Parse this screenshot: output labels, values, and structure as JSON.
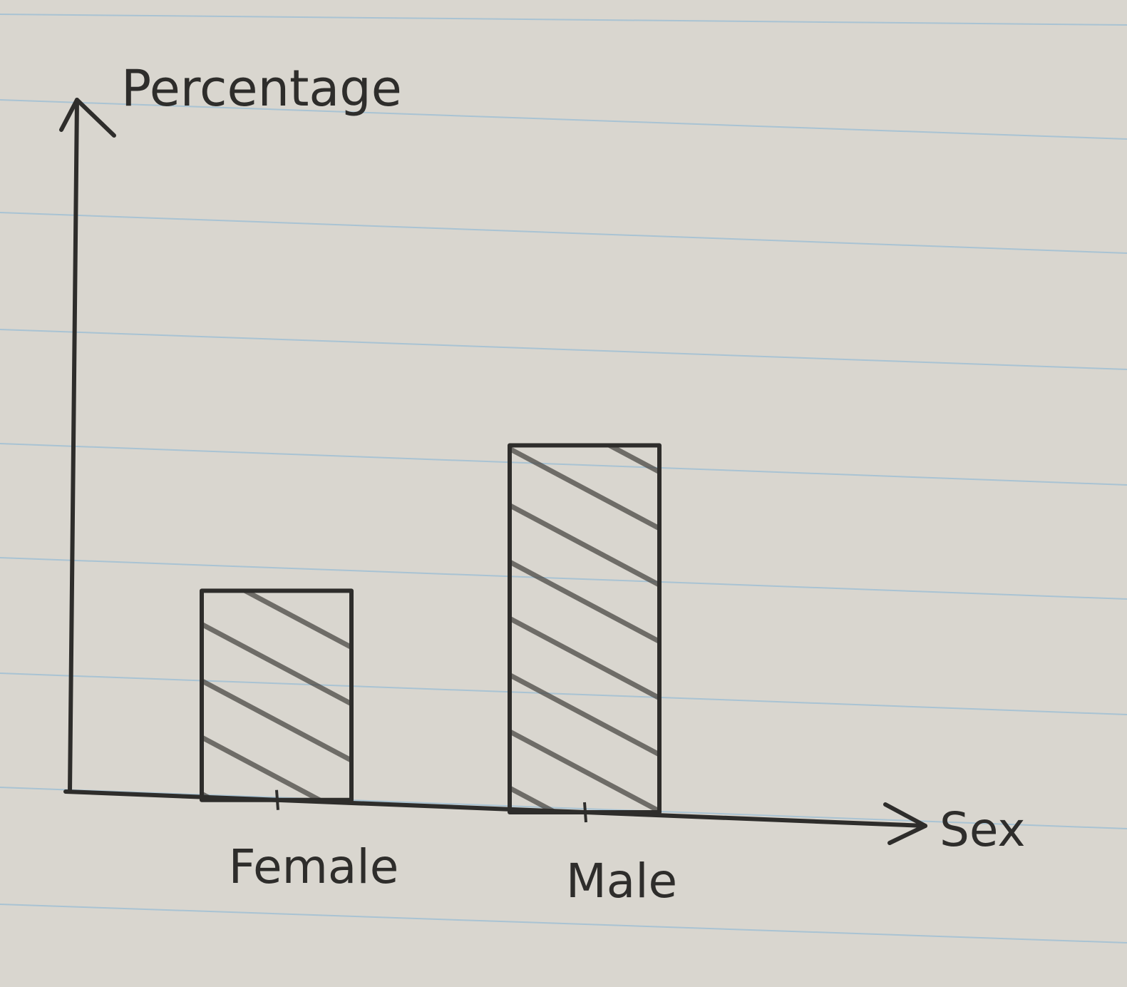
{
  "chart_data": {
    "type": "bar",
    "title": "",
    "xlabel": "Sex",
    "ylabel": "Percentage",
    "categories": [
      "Female",
      "Male"
    ],
    "values": [
      29,
      50
    ],
    "ylim": [
      0,
      100
    ],
    "grid": false,
    "legend": "none",
    "bar_fill": "hatched"
  },
  "colors": {
    "paper": "#d9d6cf",
    "rule_line": "#a9c3d3",
    "ink": "#2e2d2b",
    "pencil_hatch": "#4a4844"
  }
}
